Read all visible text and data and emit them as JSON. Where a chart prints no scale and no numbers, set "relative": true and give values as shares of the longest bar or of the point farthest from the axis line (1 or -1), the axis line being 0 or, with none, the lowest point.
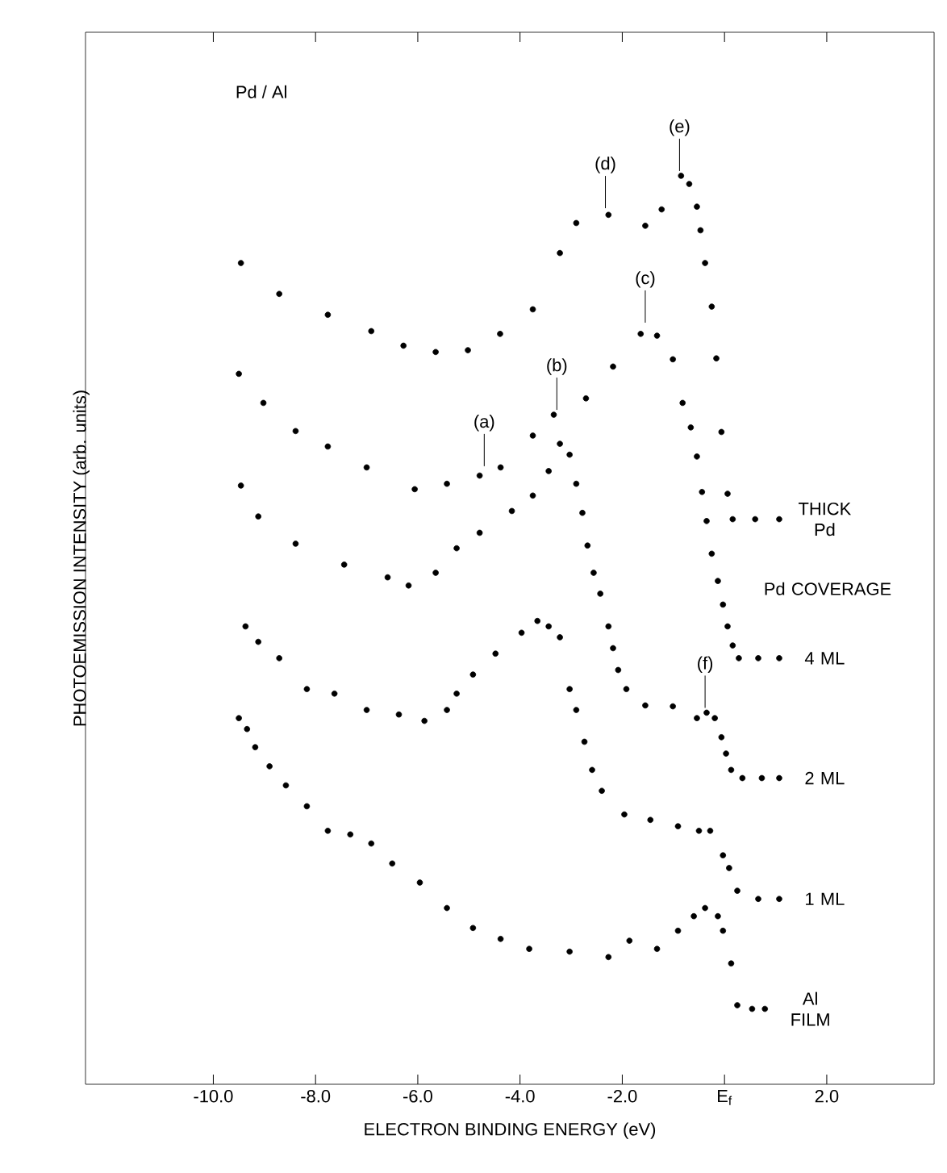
{
  "chart_data": {
    "type": "scatter",
    "title": "Pd / Al",
    "xlabel": "ELECTRON BINDING ENERGY (eV)",
    "ylabel": "PHOTOEMISSION INTENSITY (arb. units)",
    "relative": true,
    "marker": "circle",
    "xlim": [
      -12.5,
      4.1
    ],
    "xticks": [
      {
        "value": -10,
        "label": "-10.0"
      },
      {
        "value": -8,
        "label": "-8.0"
      },
      {
        "value": -6,
        "label": "-6.0"
      },
      {
        "value": -4,
        "label": "-4.0"
      },
      {
        "value": -2,
        "label": "-2.0"
      },
      {
        "value": 0,
        "label": "E$_{f}$"
      },
      {
        "value": 2,
        "label": "2.0"
      }
    ],
    "series": [
      {
        "name": "THICK Pd",
        "color": "#000000",
        "x": [
          -9.46,
          -8.71,
          -7.76,
          -6.91,
          -6.28,
          -5.65,
          -5.02,
          -4.39,
          -3.75,
          -3.22,
          -2.9,
          -2.27,
          -1.55,
          -1.23,
          -0.85,
          -0.69,
          -0.54,
          -0.47,
          -0.38,
          -0.25,
          -0.16,
          -0.06,
          0.06,
          0.16,
          0.6,
          1.07
        ],
        "values": [
          0.904,
          0.87,
          0.847,
          0.829,
          0.813,
          0.806,
          0.808,
          0.826,
          0.853,
          0.915,
          0.948,
          0.957,
          0.945,
          0.963,
          1.0,
          0.991,
          0.966,
          0.94,
          0.904,
          0.856,
          0.799,
          0.718,
          0.65,
          0.622,
          0.622,
          0.622
        ]
      },
      {
        "name": "4 ML",
        "color": "#000000",
        "x": [
          -9.5,
          -9.02,
          -8.39,
          -7.76,
          -7.0,
          -6.06,
          -5.43,
          -4.79,
          -4.38,
          -3.75,
          -3.34,
          -2.71,
          -2.18,
          -1.64,
          -1.32,
          -1.01,
          -0.82,
          -0.66,
          -0.54,
          -0.44,
          -0.35,
          -0.25,
          -0.13,
          -0.03,
          0.06,
          0.16,
          0.28,
          0.66,
          1.07
        ],
        "values": [
          0.782,
          0.75,
          0.719,
          0.702,
          0.679,
          0.655,
          0.661,
          0.67,
          0.679,
          0.714,
          0.737,
          0.755,
          0.79,
          0.826,
          0.824,
          0.798,
          0.75,
          0.723,
          0.691,
          0.652,
          0.62,
          0.584,
          0.554,
          0.528,
          0.504,
          0.483,
          0.469,
          0.469,
          0.469
        ]
      },
      {
        "name": "2 ML",
        "color": "#000000",
        "x": [
          -9.46,
          -9.12,
          -8.39,
          -7.44,
          -6.59,
          -6.18,
          -5.65,
          -5.24,
          -4.79,
          -4.16,
          -3.75,
          -3.44,
          -3.22,
          -3.03,
          -2.9,
          -2.78,
          -2.68,
          -2.56,
          -2.43,
          -2.27,
          -2.18,
          -2.08,
          -1.92,
          -1.55,
          -1.01,
          -0.54,
          -0.35,
          -0.19,
          -0.06,
          0.03,
          0.13,
          0.35,
          0.73,
          1.07
        ],
        "values": [
          0.659,
          0.625,
          0.595,
          0.572,
          0.558,
          0.549,
          0.563,
          0.59,
          0.607,
          0.631,
          0.648,
          0.675,
          0.705,
          0.693,
          0.661,
          0.629,
          0.593,
          0.563,
          0.54,
          0.504,
          0.48,
          0.456,
          0.435,
          0.417,
          0.416,
          0.403,
          0.409,
          0.403,
          0.382,
          0.364,
          0.346,
          0.337,
          0.337,
          0.337
        ]
      },
      {
        "name": "1 ML",
        "color": "#000000",
        "x": [
          -9.37,
          -9.12,
          -8.71,
          -8.17,
          -7.63,
          -7.0,
          -6.37,
          -5.87,
          -5.43,
          -5.24,
          -4.92,
          -4.48,
          -3.97,
          -3.66,
          -3.44,
          -3.22,
          -3.03,
          -2.9,
          -2.74,
          -2.59,
          -2.4,
          -1.96,
          -1.45,
          -0.91,
          -0.5,
          -0.28,
          -0.03,
          0.09,
          0.25,
          0.66,
          1.07
        ],
        "values": [
          0.504,
          0.487,
          0.469,
          0.435,
          0.43,
          0.412,
          0.407,
          0.4,
          0.412,
          0.43,
          0.451,
          0.474,
          0.497,
          0.51,
          0.504,
          0.492,
          0.435,
          0.412,
          0.377,
          0.346,
          0.323,
          0.297,
          0.291,
          0.284,
          0.279,
          0.279,
          0.252,
          0.238,
          0.213,
          0.204,
          0.204
        ]
      },
      {
        "name": "Al FILM",
        "color": "#000000",
        "x": [
          -9.5,
          -9.34,
          -9.18,
          -8.9,
          -8.58,
          -8.17,
          -7.76,
          -7.32,
          -6.91,
          -6.5,
          -5.96,
          -5.43,
          -4.92,
          -4.38,
          -3.82,
          -3.03,
          -2.27,
          -1.86,
          -1.32,
          -0.91,
          -0.6,
          -0.38,
          -0.13,
          -0.03,
          0.13,
          0.25,
          0.54,
          0.79
        ],
        "values": [
          0.403,
          0.391,
          0.371,
          0.35,
          0.329,
          0.306,
          0.279,
          0.275,
          0.265,
          0.243,
          0.222,
          0.194,
          0.172,
          0.16,
          0.149,
          0.146,
          0.14,
          0.158,
          0.149,
          0.169,
          0.185,
          0.194,
          0.185,
          0.169,
          0.133,
          0.087,
          0.083,
          0.083
        ]
      }
    ],
    "annotations": [
      "Pd COVERAGE",
      {
        "text": "(a)",
        "x": -4.7,
        "y": 0.675
      },
      {
        "text": "(b)",
        "x": -3.28,
        "y": 0.737
      },
      {
        "text": "(c)",
        "x": -1.55,
        "y": 0.833
      },
      {
        "text": "(d)",
        "x": -2.33,
        "y": 0.959
      },
      {
        "text": "(e)",
        "x": -0.88,
        "y": 1.0
      },
      {
        "text": "(f)",
        "x": -0.38,
        "y": 0.409
      }
    ]
  }
}
